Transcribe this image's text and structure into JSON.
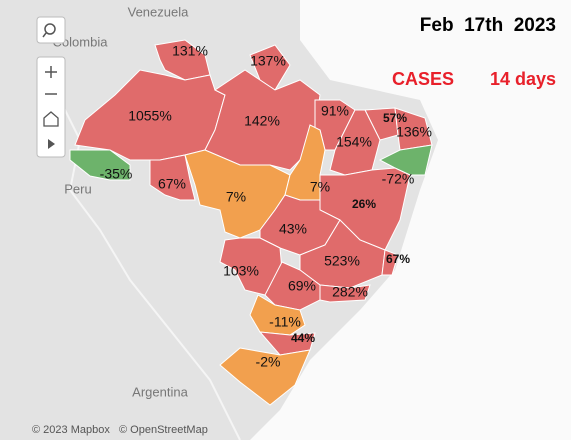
{
  "date": "Feb  17th  2023",
  "metric": "CASES",
  "period": "14 days",
  "places": [
    "Venezuela",
    "Colombia",
    "Peru",
    "Argentina"
  ],
  "regions": [
    {
      "label": "131%",
      "color": "#e06b6b"
    },
    {
      "label": "137%",
      "color": "#e06b6b"
    },
    {
      "label": "1055%",
      "color": "#e06b6b"
    },
    {
      "label": "142%",
      "color": "#e06b6b"
    },
    {
      "label": "91%",
      "color": "#e06b6b"
    },
    {
      "label": "57%",
      "color": "#e06b6b"
    },
    {
      "label": "136%",
      "color": "#e06b6b"
    },
    {
      "label": "154%",
      "color": "#e06b6b"
    },
    {
      "label": "-35%",
      "color": "#6db36b"
    },
    {
      "label": "-72%",
      "color": "#6db36b"
    },
    {
      "label": "67%",
      "color": "#e06b6b"
    },
    {
      "label": "7%",
      "color": "#f2a04e"
    },
    {
      "label": "7%",
      "color": "#f2a04e"
    },
    {
      "label": "26%",
      "color": "#e06b6b"
    },
    {
      "label": "43%",
      "color": "#e06b6b"
    },
    {
      "label": "103%",
      "color": "#e06b6b"
    },
    {
      "label": "523%",
      "color": "#e06b6b"
    },
    {
      "label": "67%",
      "color": "#e06b6b"
    },
    {
      "label": "69%",
      "color": "#e06b6b"
    },
    {
      "label": "282%",
      "color": "#e06b6b"
    },
    {
      "label": "-11%",
      "color": "#f2a04e"
    },
    {
      "label": "44%",
      "color": "#e06b6b"
    },
    {
      "label": "-2%",
      "color": "#f2a04e"
    }
  ],
  "attribution": [
    "© 2023 Mapbox",
    "© OpenStreetMap"
  ]
}
